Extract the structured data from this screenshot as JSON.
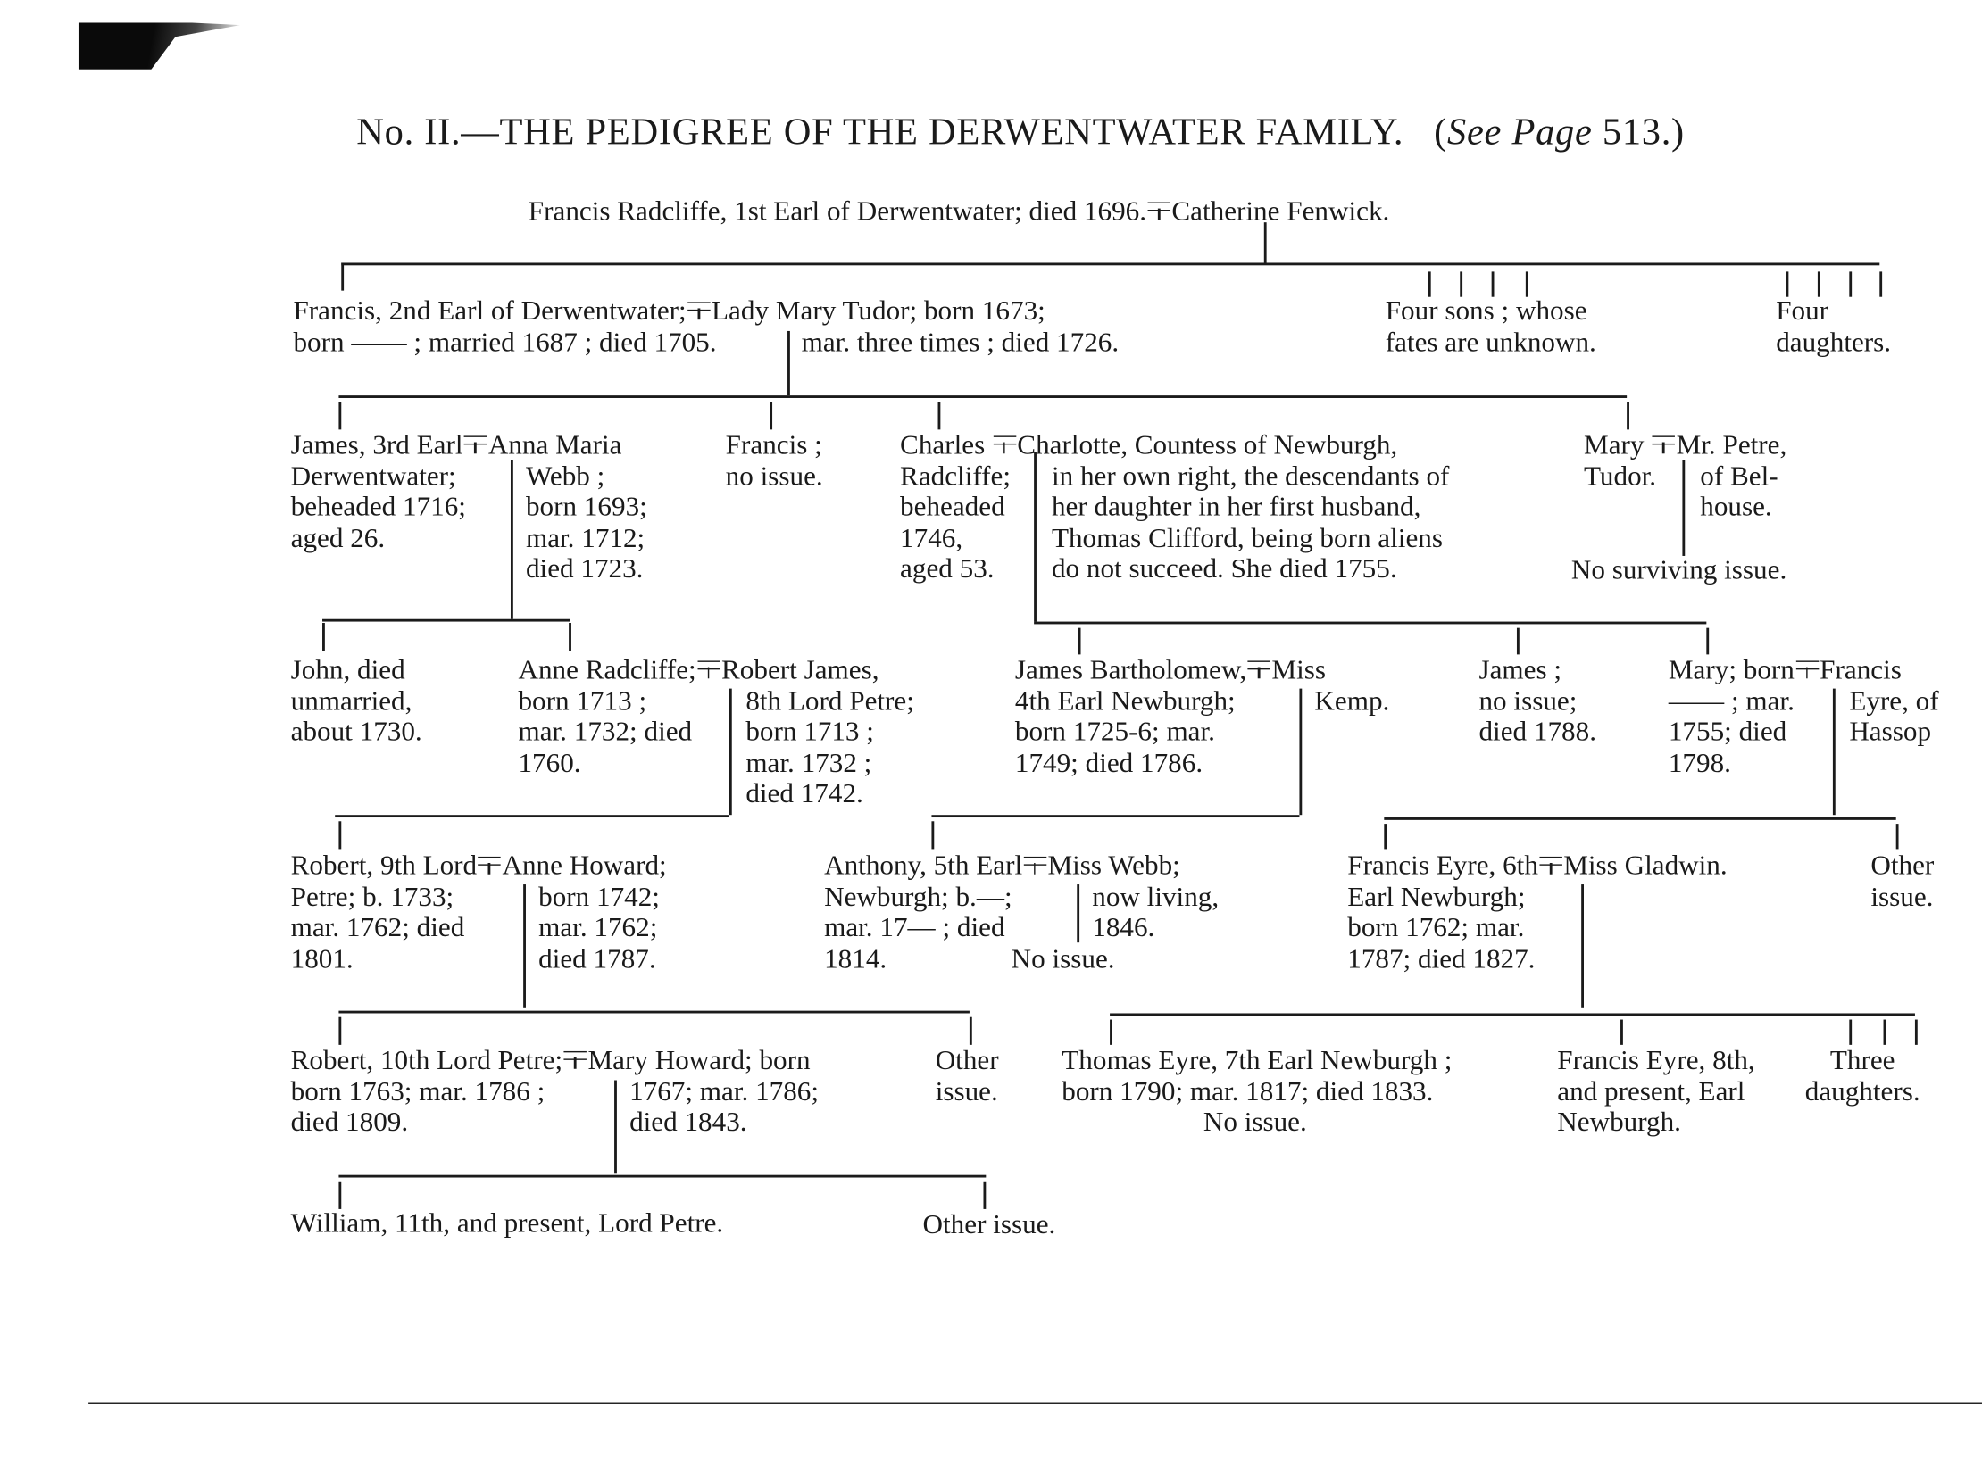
{
  "title": {
    "number": "No. II.",
    "text": "—THE PEDIGREE OF THE DERWENTWATER FAMILY.",
    "open": "(",
    "see": "See Page",
    "page": " 513.)"
  },
  "gen1": {
    "husband": "Francis Radcliffe, 1st Earl of Derwentwater; died 1696.",
    "wife": "Catherine Fenwick."
  },
  "gen2": {
    "francis": {
      "first": "Francis, 2nd Earl of Derwentwater;",
      "lines": [
        "born —— ; married 1687 ; died 1705."
      ]
    },
    "mary_tudor": {
      "first": "Lady Mary Tudor; born 1673;",
      "lines": [
        "mar. three times ; died 1726."
      ]
    },
    "four_sons": [
      "Four sons ; whose",
      "fates are unknown."
    ],
    "four_daughters": [
      "Four",
      "daughters."
    ]
  },
  "gen3": {
    "james": {
      "first": "James, 3rd Earl",
      "lines": [
        "Derwentwater;",
        "beheaded 1716;",
        "aged 26."
      ]
    },
    "anna": {
      "first": "Anna Maria",
      "lines": [
        "Webb ;",
        "born 1693;",
        "mar. 1712;",
        "died 1723."
      ]
    },
    "francis": [
      "Francis ;",
      "no issue."
    ],
    "charles": {
      "first": "Charles",
      "lines": [
        "Radcliffe;",
        "beheaded",
        "1746,",
        "aged 53."
      ]
    },
    "charlotte": {
      "first": "Charlotte, Countess of Newburgh,",
      "lines": [
        "in her own right, the descendants of",
        "her daughter in her first husband,",
        "Thomas Clifford, being born aliens",
        "do not succeed.   She died 1755."
      ]
    },
    "mary": {
      "first": "Mary",
      "lines": [
        "Tudor."
      ]
    },
    "petre": {
      "first": "Mr. Petre,",
      "lines": [
        "of Bel-",
        "house."
      ]
    },
    "no_surviving": "No surviving issue."
  },
  "gen4": {
    "john": [
      "John, died",
      "unmarried,",
      "about 1730."
    ],
    "anne": {
      "first": "Anne Radcliffe;",
      "lines": [
        "born 1713 ;",
        "mar. 1732; died",
        "1760."
      ]
    },
    "robert_james": {
      "first": "Robert James,",
      "lines": [
        "8th Lord Petre;",
        "born 1713 ;",
        "mar. 1732 ;",
        "died 1742."
      ]
    },
    "james_b": {
      "first": "James Bartholomew,",
      "lines": [
        "4th Earl Newburgh;",
        "born 1725-6;  mar.",
        "1749;  died 1786."
      ]
    },
    "kemp": {
      "first": "Miss",
      "lines": [
        "Kemp."
      ]
    },
    "james": [
      "James ;",
      "no issue;",
      "died 1788."
    ],
    "mary": {
      "first": "Mary; born",
      "lines": [
        "—— ; mar.",
        "1755; died",
        "1798."
      ]
    },
    "francis_eyre": {
      "first": "Francis",
      "lines": [
        "Eyre, of",
        "Hassop"
      ]
    }
  },
  "gen5": {
    "robert9": {
      "first": "Robert, 9th Lord",
      "lines": [
        "Petre; b. 1733;",
        "mar. 1762;  died",
        "1801."
      ]
    },
    "anne_howard": {
      "first": "Anne Howard;",
      "lines": [
        "born 1742;",
        "mar. 1762;",
        "died 1787."
      ]
    },
    "anthony": {
      "first": "Anthony, 5th Earl",
      "lines": [
        "Newburgh;  b.—;",
        "mar. 17— ;  died",
        "1814."
      ]
    },
    "miss_webb": {
      "first": "Miss Webb;",
      "lines": [
        "now living,",
        "1846."
      ]
    },
    "no_issue": "No issue.",
    "francis6": {
      "first": "Francis Eyre, 6th",
      "lines": [
        "Earl Newburgh;",
        "born 1762;  mar.",
        "1787;  died 1827."
      ]
    },
    "gladwin": "Miss Gladwin.",
    "other": [
      "Other",
      "issue."
    ]
  },
  "gen6": {
    "robert10": {
      "first": "Robert, 10th Lord Petre;",
      "lines": [
        "born 1763;  mar. 1786 ;",
        "died 1809."
      ]
    },
    "mary_howard": {
      "first": "Mary Howard;  born",
      "lines": [
        "1767;  mar. 1786;",
        "died 1843."
      ]
    },
    "other": [
      "Other",
      "issue."
    ],
    "thomas": [
      "Thomas Eyre, 7th Earl Newburgh ;",
      "born 1790; mar. 1817; died 1833."
    ],
    "thomas_no_issue": "No issue.",
    "francis8": [
      "Francis Eyre, 8th,",
      "and present, Earl",
      "Newburgh."
    ],
    "three": [
      "Three",
      "daughters."
    ]
  },
  "gen7": {
    "william": "William, 11th, and present, Lord Petre.",
    "other": "Other issue."
  }
}
